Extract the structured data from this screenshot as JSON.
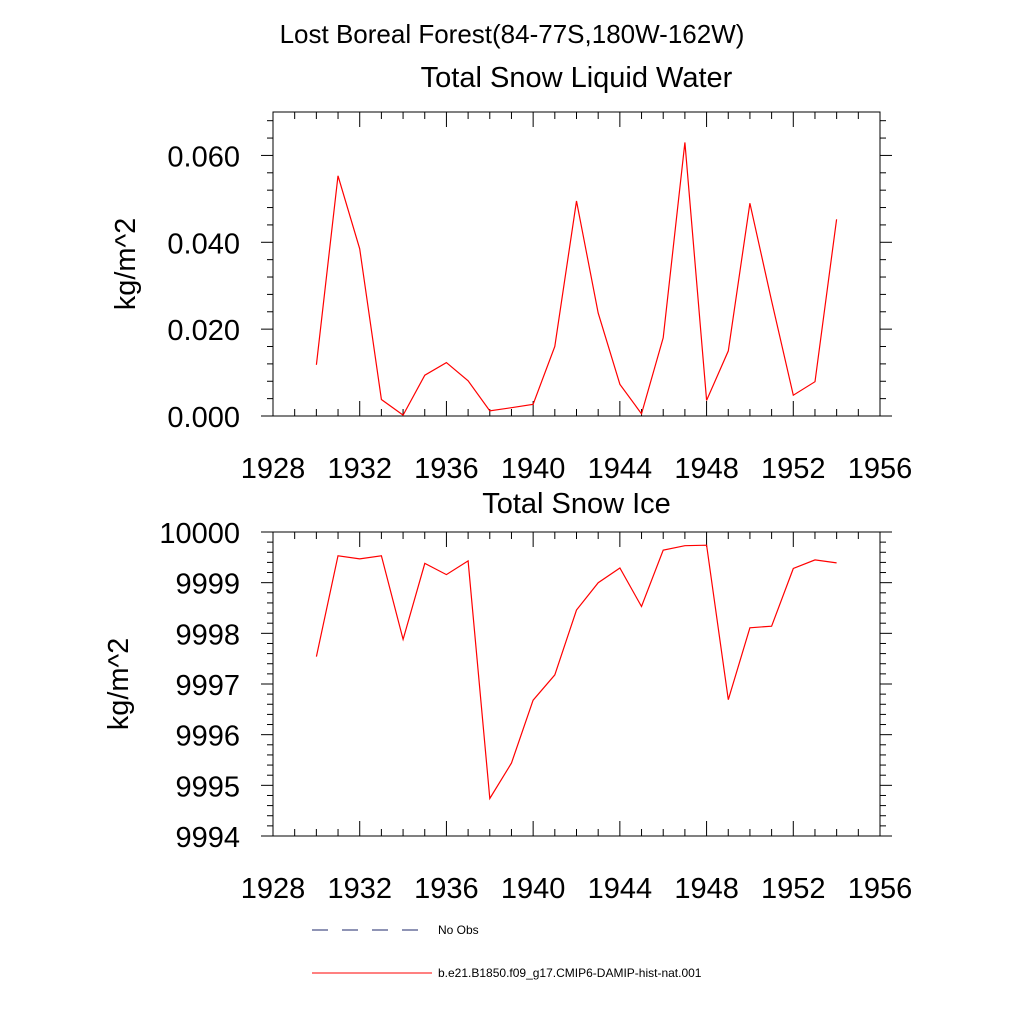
{
  "figure": {
    "main_title": "Lost Boreal Forest(84-77S,180W-162W)"
  },
  "chart_data": [
    {
      "type": "line",
      "title": "Total Snow Liquid Water",
      "ylabel": "kg/m^2",
      "xlim": [
        1928,
        1956
      ],
      "ylim": [
        0.0,
        0.07
      ],
      "xticks": [
        1928,
        1932,
        1936,
        1940,
        1944,
        1948,
        1952,
        1956
      ],
      "yticks": [
        0.0,
        0.02,
        0.04,
        0.06
      ],
      "ytick_labels": [
        "0.000",
        "0.020",
        "0.040",
        "0.060"
      ],
      "series": [
        {
          "color": "#ff0000",
          "x": [
            1930,
            1931,
            1932,
            1933,
            1934,
            1935,
            1936,
            1937,
            1938,
            1939,
            1940,
            1941,
            1942,
            1943,
            1944,
            1945,
            1946,
            1947,
            1948,
            1949,
            1950,
            1951,
            1952,
            1953,
            1954
          ],
          "y": [
            0.0118,
            0.0553,
            0.0385,
            0.0038,
            0.0002,
            0.0094,
            0.0123,
            0.0081,
            0.0012,
            0.0019,
            0.0027,
            0.016,
            0.0495,
            0.0237,
            0.0073,
            0.0005,
            0.018,
            0.063,
            0.0036,
            0.015,
            0.049,
            0.0265,
            0.0048,
            0.0079,
            0.0453
          ]
        }
      ]
    },
    {
      "type": "line",
      "title": "Total Snow Ice",
      "ylabel": "kg/m^2",
      "xlim": [
        1928,
        1956
      ],
      "ylim": [
        9994,
        10000
      ],
      "xticks": [
        1928,
        1932,
        1936,
        1940,
        1944,
        1948,
        1952,
        1956
      ],
      "yticks": [
        9994,
        9995,
        9996,
        9997,
        9998,
        9999,
        10000
      ],
      "ytick_labels": [
        "9994",
        "9995",
        "9996",
        "9997",
        "9998",
        "9999",
        "10000"
      ],
      "series": [
        {
          "color": "#ff0000",
          "x": [
            1930,
            1931,
            1932,
            1933,
            1934,
            1935,
            1936,
            1937,
            1938,
            1939,
            1940,
            1941,
            1942,
            1943,
            1944,
            1945,
            1946,
            1947,
            1948,
            1949,
            1950,
            1951,
            1952,
            1953,
            1954
          ],
          "y": [
            9997.54,
            9999.53,
            9999.47,
            9999.53,
            9997.88,
            9999.38,
            9999.16,
            9999.43,
            9994.74,
            9995.44,
            9996.68,
            9997.18,
            9998.46,
            9999.0,
            9999.29,
            9998.53,
            9999.64,
            9999.73,
            9999.74,
            9996.69,
            9998.11,
            9998.14,
            9999.28,
            9999.45,
            9999.39
          ]
        }
      ]
    }
  ],
  "legend": [
    {
      "label": "No Obs",
      "color": "#1f2a6b",
      "dash": "dashed"
    },
    {
      "label": "b.e21.B1850.f09_g17.CMIP6-DAMIP-hist-nat.001",
      "color": "#ff0000",
      "dash": "solid"
    }
  ]
}
